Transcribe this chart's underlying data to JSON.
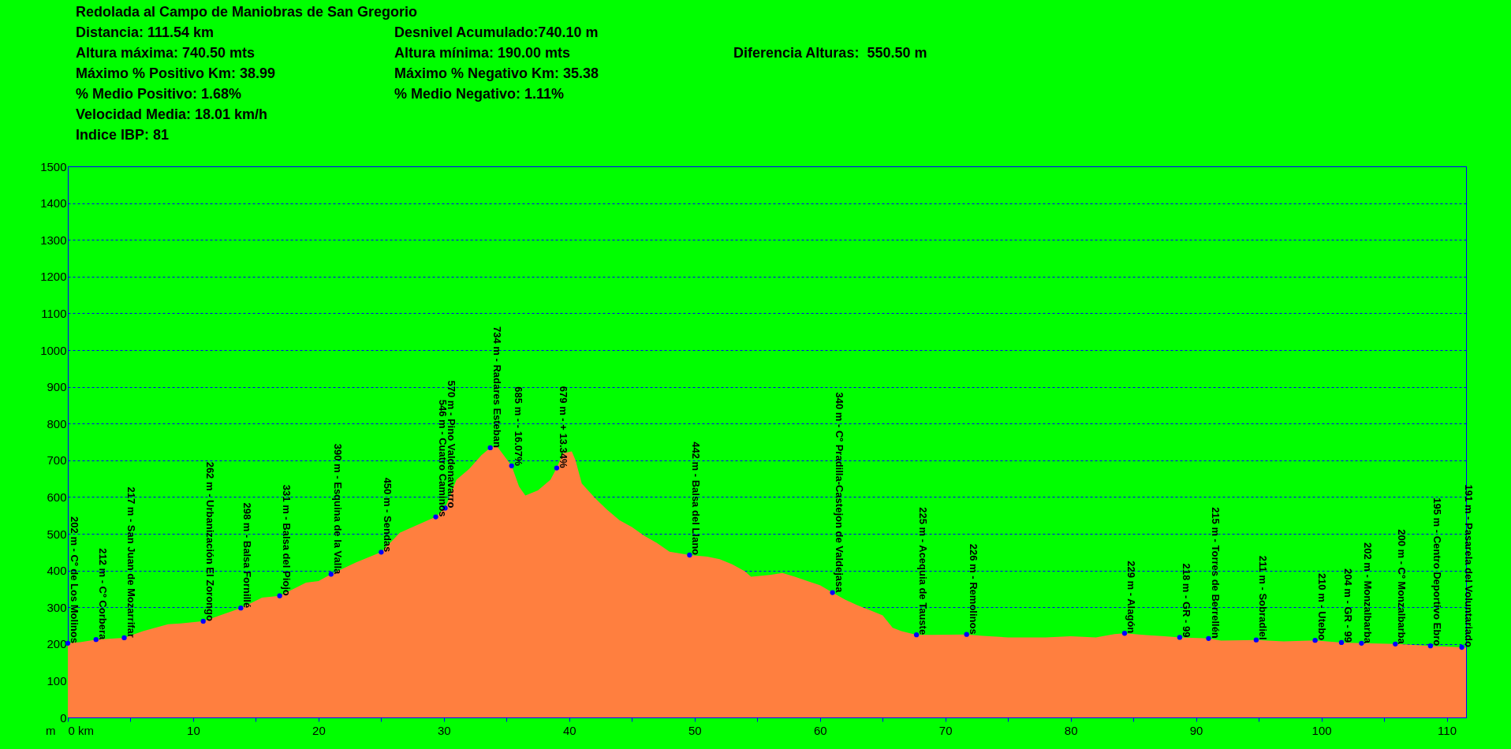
{
  "chart_data": {
    "type": "area",
    "title": "Redolada al Campo de Maniobras de San Gregorio",
    "annotations": [
      "Distancia: 111.54 km",
      "Desnivel Acumulado:740.10 m",
      "Altura máxima: 740.50 mts",
      "Altura mínima: 190.00 mts",
      "Diferencia Alturas:  550.50 m",
      "Máximo % Positivo Km: 38.99",
      "Máximo % Negativo Km: 35.38",
      "% Medio Positivo: 1.68%",
      "% Medio Negativo: 1.11%",
      "Velocidad Media: 18.01 km/h",
      "Indice IBP: 81"
    ],
    "ylabel": "m",
    "xlim": [
      0,
      111.54
    ],
    "ylim": [
      0,
      1500
    ],
    "xticks": [
      {
        "value": 0,
        "label": "0 km"
      },
      {
        "value": 5,
        "label": null
      },
      10,
      {
        "value": 15,
        "label": null
      },
      20,
      {
        "value": 25,
        "label": null
      },
      30,
      {
        "value": 35,
        "label": null
      },
      40,
      {
        "value": 45,
        "label": null
      },
      50,
      {
        "value": 55,
        "label": null
      },
      60,
      {
        "value": 65,
        "label": null
      },
      70,
      {
        "value": 75,
        "label": null
      },
      80,
      {
        "value": 85,
        "label": null
      },
      90,
      {
        "value": 95,
        "label": null
      },
      100,
      {
        "value": 105,
        "label": null
      },
      110
    ],
    "yticks": [
      0,
      100,
      200,
      300,
      400,
      500,
      600,
      700,
      800,
      900,
      1000,
      1100,
      1200,
      1300,
      1400,
      1500
    ],
    "grid": "y",
    "series": [
      {
        "type": "area",
        "color": "#ff7f3f",
        "x": [
          0,
          1,
          2.25,
          4.5,
          6,
          8,
          9,
          10.8,
          13.8,
          15.5,
          16.9,
          19,
          20,
          21,
          23,
          25,
          26.5,
          27.5,
          29.35,
          30.1,
          31,
          32,
          33,
          33.7,
          34.2,
          35.4,
          36,
          36.5,
          37.5,
          38.5,
          39,
          39.5,
          40.2,
          40.5,
          41,
          42,
          43,
          44,
          45,
          46,
          47,
          48,
          49.6,
          51,
          52,
          53,
          54,
          54.5,
          56,
          57,
          58,
          59,
          60,
          61,
          62,
          63,
          64,
          65,
          65.8,
          66.5,
          67.7,
          69,
          71.7,
          73,
          75,
          78,
          80,
          82,
          83.5,
          84.3,
          86,
          87.5,
          88.7,
          91,
          92,
          94.8,
          97,
          99.5,
          101.6,
          103.2,
          105.9,
          108.7,
          111.2,
          111.54
        ],
        "values": [
          202,
          205,
          212,
          217,
          235,
          254,
          256,
          262,
          298,
          326,
          331,
          367,
          371,
          390,
          422,
          450,
          503,
          518,
          546,
          570,
          647,
          676,
          714,
          734,
          740,
          685,
          628,
          604,
          618,
          647,
          679,
          719,
          724,
          700,
          637,
          599,
          566,
          537,
          518,
          494,
          475,
          451,
          442,
          438,
          431,
          417,
          398,
          383,
          388,
          393,
          383,
          371,
          360,
          340,
          321,
          305,
          292,
          278,
          244,
          235,
          225,
          225,
          226,
          222,
          218,
          218,
          221,
          218,
          227,
          229,
          224,
          221,
          218,
          215,
          209,
          211,
          207,
          210,
          204,
          202,
          200,
          195,
          191,
          190
        ]
      },
      {
        "type": "scatter",
        "color": "#0000ff",
        "marker": "circle",
        "x": [
          0,
          2.25,
          4.5,
          10.8,
          13.8,
          16.9,
          21,
          25,
          29.35,
          30.1,
          33.7,
          35.4,
          39,
          49.6,
          61,
          67.7,
          71.7,
          84.3,
          88.7,
          91,
          94.8,
          99.5,
          101.6,
          103.2,
          105.9,
          108.7,
          111.2
        ],
        "values": [
          202,
          212,
          217,
          262,
          298,
          331,
          390,
          450,
          546,
          570,
          734,
          685,
          679,
          442,
          340,
          225,
          226,
          229,
          218,
          215,
          211,
          210,
          204,
          202,
          200,
          195,
          191
        ],
        "value_labels": [
          "202 m - Cº de Los Molinos",
          "212 m - Cº Corbera",
          "217 m - San Juan de Mozarrifar",
          "262 m - Urbanización El Zorongo",
          "298 m - Balsa Fornillé",
          "331 m - Balsa del Piojo",
          "390 m - Esquina de la Valla",
          "450 m - Sendas",
          "546 m - Cuatro Caminos",
          "570 m - Pino Valdenavarro",
          "734 m - Radares Esteban",
          "685 m - - 16.07%",
          "679 m - + 13.34%",
          "442 m - Balsa del Llano",
          "340 m - Cº Pradilla-Castejon de Valdejasa",
          "225 m - Acequia de Tauste",
          "226 m - Remolinos",
          "229 m - Alagón",
          "218 m - GR - 99",
          "215 m - Torres de Berrellén",
          "211 m - Sobradiel",
          "210 m - Utebo",
          "204 m - GR - 99",
          "202 m - Monzalbarba",
          "200 m - Cº Monzalbarba",
          "195 m - Centro Deportivo Ebro",
          "191 m - Pasarela del Voluntariado"
        ]
      }
    ]
  }
}
